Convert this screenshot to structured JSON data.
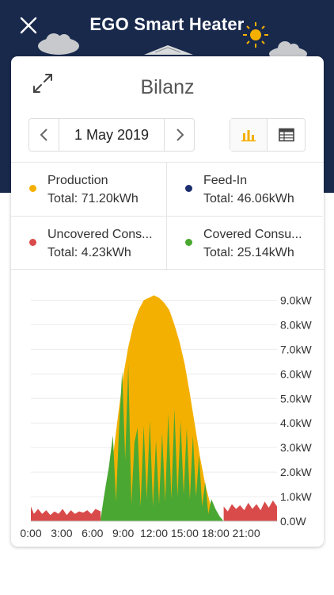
{
  "header": {
    "title": "EGO Smart Heater",
    "close_icon": "close-icon"
  },
  "card": {
    "title": "Bilanz",
    "expand_icon": "expand-icon",
    "date": "1 May 2019",
    "prev_icon": "chevron-left-icon",
    "next_icon": "chevron-right-icon",
    "view_modes": [
      "bar-chart-icon",
      "table-icon"
    ],
    "active_view": "bar-chart-icon"
  },
  "legend": [
    {
      "name": "Production",
      "total": "Total: 71.20kWh",
      "color": "#f4b000"
    },
    {
      "name": "Feed-In",
      "total": "Total: 46.06kWh",
      "color": "#1b2f6e"
    },
    {
      "name": "Uncovered Cons...",
      "total": "Total: 4.23kWh",
      "color": "#d94b4b"
    },
    {
      "name": "Covered Consu...",
      "total": "Total: 25.14kWh",
      "color": "#4aa832"
    }
  ],
  "chart_data": {
    "type": "area",
    "x_ticks": [
      "0:00",
      "3:00",
      "6:00",
      "9:00",
      "12:00",
      "15:00",
      "18:00",
      "21:00"
    ],
    "y_ticks": [
      "0.0W",
      "1.0kW",
      "2.0kW",
      "3.0kW",
      "4.0kW",
      "5.0kW",
      "6.0kW",
      "7.0kW",
      "8.0kW",
      "9.0kW"
    ],
    "xlim": [
      0,
      24
    ],
    "ylim": [
      0,
      9.5
    ],
    "series": [
      {
        "name": "Production",
        "color": "#f4b000",
        "x": [
          6.8,
          7.0,
          7.5,
          8.0,
          8.5,
          9.0,
          9.5,
          10.0,
          10.5,
          11.0,
          11.5,
          12.0,
          12.5,
          13.0,
          13.5,
          14.0,
          14.5,
          15.0,
          15.5,
          16.0,
          16.5,
          17.0,
          17.5,
          18.0,
          18.5,
          18.8
        ],
        "y": [
          0.0,
          0.3,
          1.2,
          2.6,
          4.3,
          5.9,
          7.1,
          8.0,
          8.6,
          9.0,
          9.1,
          9.2,
          9.1,
          8.9,
          8.6,
          8.0,
          7.3,
          6.4,
          5.2,
          3.9,
          2.6,
          1.5,
          0.7,
          0.3,
          0.1,
          0.0
        ]
      },
      {
        "name": "Covered Consumption",
        "color": "#4aa832",
        "x": [
          6.8,
          7.2,
          7.6,
          8.0,
          8.3,
          8.6,
          8.9,
          9.2,
          9.5,
          9.8,
          10.1,
          10.4,
          10.7,
          11.0,
          11.3,
          11.6,
          11.9,
          12.2,
          12.5,
          12.8,
          13.1,
          13.4,
          13.7,
          14.0,
          14.3,
          14.6,
          14.9,
          15.2,
          15.5,
          15.8,
          16.1,
          16.4,
          16.7,
          17.0,
          17.3,
          17.6,
          18.0,
          18.4,
          18.8
        ],
        "y": [
          0.1,
          1.2,
          2.2,
          3.5,
          0.8,
          3.8,
          6.1,
          2.5,
          6.4,
          0.7,
          3.2,
          3.8,
          0.6,
          3.9,
          0.9,
          4.1,
          0.6,
          3.3,
          0.7,
          3.6,
          0.8,
          4.4,
          0.9,
          4.6,
          1.0,
          4.1,
          1.1,
          3.8,
          0.9,
          3.5,
          1.0,
          2.7,
          0.6,
          1.6,
          0.3,
          0.9,
          0.5,
          0.2,
          0.0
        ]
      },
      {
        "name": "Uncovered Consumption",
        "color": "#d94b4b",
        "x": [
          0.0,
          0.3,
          0.7,
          1.1,
          1.5,
          1.9,
          2.3,
          2.7,
          3.1,
          3.5,
          3.9,
          4.3,
          4.7,
          5.1,
          5.5,
          5.9,
          6.3,
          6.8,
          18.8,
          19.2,
          19.6,
          20.0,
          20.4,
          20.8,
          21.2,
          21.6,
          22.0,
          22.4,
          22.8,
          23.2,
          23.6,
          24.0
        ],
        "y": [
          0.6,
          0.3,
          0.5,
          0.3,
          0.45,
          0.25,
          0.4,
          0.3,
          0.5,
          0.25,
          0.45,
          0.3,
          0.4,
          0.35,
          0.45,
          0.3,
          0.5,
          0.4,
          0.6,
          0.4,
          0.7,
          0.5,
          0.65,
          0.45,
          0.75,
          0.5,
          0.7,
          0.45,
          0.8,
          0.55,
          0.85,
          0.6
        ]
      }
    ]
  }
}
